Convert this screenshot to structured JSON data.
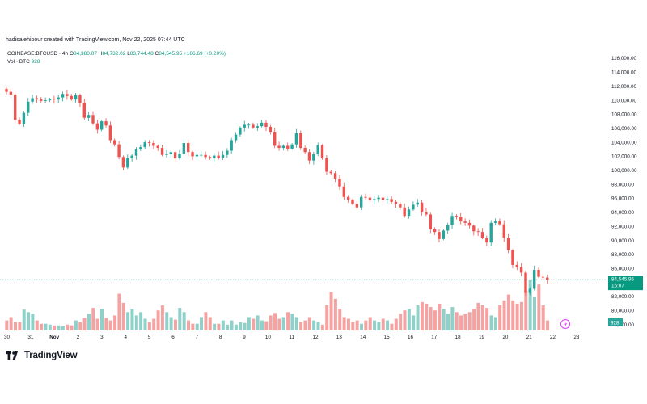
{
  "header": {
    "attribution": "hadisalehipour created with TradingView.com, Nov 22, 2025 07:44 UTC"
  },
  "legend": {
    "symbol": "COINBASE:BTCUSD · 4h",
    "open_label": "O",
    "open": "84,380.07",
    "high_label": "H",
    "high": "84,732.02",
    "low_label": "L",
    "low": "83,744.48",
    "close_label": "C",
    "close": "84,545.95",
    "change": "+166.69 (+0.20%)",
    "vol_label": "Vol · BTC",
    "vol": "928"
  },
  "price_badge": {
    "price": "84,545.95",
    "countdown": "15:07"
  },
  "vol_badge": "928",
  "brand": {
    "name": "TradingView"
  },
  "colors": {
    "up": "#26a69a",
    "down": "#ef5350",
    "up_vol": "#8fd1c9",
    "down_vol": "#f5a3a2",
    "price_line": "#089981"
  },
  "chart_data": {
    "type": "candlestick",
    "title": "COINBASE:BTCUSD · 4h",
    "x_ticks": [
      "30",
      "31",
      "Nov",
      "2",
      "3",
      "4",
      "5",
      "6",
      "7",
      "8",
      "9",
      "10",
      "11",
      "12",
      "13",
      "14",
      "15",
      "16",
      "17",
      "18",
      "19",
      "20",
      "21",
      "22",
      "23"
    ],
    "y_ticks": [
      "116,000.00",
      "114,000.00",
      "112,000.00",
      "110,000.00",
      "108,000.00",
      "106,000.00",
      "104,000.00",
      "102,000.00",
      "100,000.00",
      "98,000.00",
      "96,000.00",
      "94,000.00",
      "92,000.00",
      "90,000.00",
      "88,000.00",
      "86,000.00",
      "84,000.00",
      "82,000.00",
      "80,000.00",
      "78,000.00"
    ],
    "ylim": [
      77500,
      116500
    ],
    "y_scale": "linear",
    "grid": false,
    "close": [
      111200,
      110800,
      107200,
      106600,
      108200,
      109800,
      110300,
      110100,
      109900,
      110000,
      110200,
      110100,
      110400,
      110900,
      110600,
      110100,
      110700,
      109600,
      107500,
      107900,
      106700,
      105800,
      107000,
      106400,
      104300,
      103700,
      101900,
      100400,
      101700,
      102100,
      103000,
      103300,
      104000,
      103900,
      103500,
      103200,
      102200,
      102300,
      102600,
      101700,
      102400,
      103900,
      102600,
      102000,
      102200,
      102200,
      101900,
      101700,
      102100,
      101800,
      102200,
      102800,
      104300,
      105100,
      106100,
      106500,
      106500,
      106100,
      106300,
      106800,
      106200,
      105500,
      103500,
      103200,
      103500,
      103100,
      103700,
      105300,
      103200,
      102600,
      101400,
      102300,
      103600,
      101700,
      99800,
      99600,
      98800,
      97700,
      96200,
      95800,
      95200,
      94700,
      96200,
      96100,
      95700,
      95900,
      96100,
      95800,
      95900,
      95500,
      95200,
      94700,
      93500,
      94400,
      95100,
      95400,
      94100,
      93700,
      91600,
      91200,
      90200,
      91400,
      92200,
      93500,
      93400,
      92700,
      92500,
      92100,
      91300,
      91200,
      90300,
      89700,
      92500,
      92700,
      92300,
      90400,
      88600,
      86500,
      86200,
      85400,
      82500,
      83100,
      85800,
      84800,
      84700,
      84400
    ],
    "volume": [
      120,
      160,
      100,
      100,
      250,
      220,
      200,
      120,
      80,
      80,
      70,
      60,
      60,
      50,
      70,
      60,
      120,
      100,
      150,
      200,
      270,
      140,
      260,
      150,
      120,
      180,
      440,
      330,
      220,
      260,
      180,
      220,
      140,
      100,
      140,
      240,
      300,
      220,
      160,
      130,
      270,
      220,
      120,
      80,
      80,
      160,
      220,
      160,
      80,
      80,
      120,
      70,
      120,
      70,
      100,
      90,
      160,
      140,
      180,
      120,
      110,
      180,
      210,
      140,
      160,
      220,
      200,
      160,
      100,
      120,
      160,
      120,
      100,
      70,
      300,
      460,
      380,
      260,
      160,
      140,
      100,
      120,
      80,
      120,
      160,
      120,
      100,
      140,
      120,
      80,
      140,
      200,
      240,
      260,
      180,
      300,
      340,
      320,
      280,
      240,
      320,
      260,
      200,
      280,
      220,
      180,
      200,
      220,
      260,
      330,
      300,
      270,
      180,
      160,
      300,
      360,
      430,
      360,
      320,
      340,
      480,
      600,
      400,
      550,
      300,
      120
    ]
  }
}
